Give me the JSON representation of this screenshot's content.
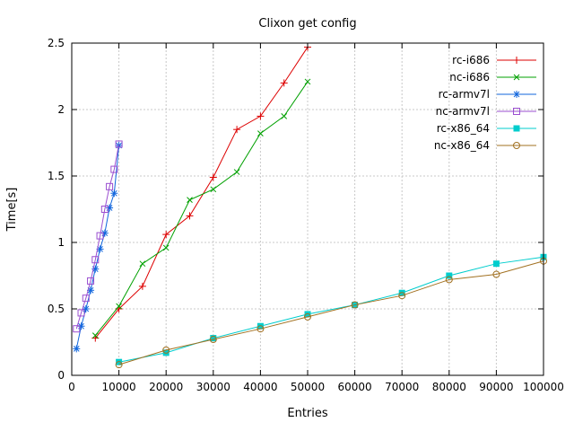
{
  "chart_data": {
    "type": "line",
    "title": "Clixon get config",
    "xlabel": "Entries",
    "ylabel": "Time[s]",
    "xlim": [
      0,
      100000
    ],
    "ylim": [
      0,
      2.5
    ],
    "xticks": [
      0,
      10000,
      20000,
      30000,
      40000,
      50000,
      60000,
      70000,
      80000,
      90000,
      100000
    ],
    "yticks": [
      0,
      0.5,
      1,
      1.5,
      2,
      2.5
    ],
    "grid": true,
    "legend_position": "inside-top-right",
    "series": [
      {
        "name": "rc-i686",
        "color": "#dd0000",
        "marker": "plus",
        "x": [
          5000,
          10000,
          15000,
          20000,
          25000,
          30000,
          35000,
          40000,
          45000,
          50000
        ],
        "y": [
          0.28,
          0.5,
          0.67,
          1.06,
          1.2,
          1.49,
          1.85,
          1.95,
          2.2,
          2.47
        ]
      },
      {
        "name": "nc-i686",
        "color": "#00a000",
        "marker": "cross",
        "x": [
          5000,
          10000,
          15000,
          20000,
          25000,
          30000,
          35000,
          40000,
          45000,
          50000
        ],
        "y": [
          0.3,
          0.52,
          0.84,
          0.96,
          1.32,
          1.4,
          1.53,
          1.82,
          1.95,
          2.21
        ]
      },
      {
        "name": "rc-armv7l",
        "color": "#1166dd",
        "marker": "asterisk",
        "x": [
          1000,
          2000,
          3000,
          4000,
          5000,
          6000,
          7000,
          8000,
          9000,
          10000
        ],
        "y": [
          0.2,
          0.37,
          0.5,
          0.64,
          0.8,
          0.95,
          1.07,
          1.26,
          1.37,
          1.73
        ]
      },
      {
        "name": "nc-armv7l",
        "color": "#9b4fd0",
        "marker": "square-open",
        "x": [
          1000,
          2000,
          3000,
          4000,
          5000,
          6000,
          7000,
          8000,
          9000,
          10000
        ],
        "y": [
          0.35,
          0.47,
          0.58,
          0.71,
          0.87,
          1.05,
          1.25,
          1.42,
          1.55,
          1.74
        ]
      },
      {
        "name": "rc-x86_64",
        "color": "#00cdcd",
        "marker": "square-filled",
        "x": [
          10000,
          20000,
          30000,
          40000,
          50000,
          60000,
          70000,
          80000,
          90000,
          100000
        ],
        "y": [
          0.1,
          0.17,
          0.28,
          0.37,
          0.46,
          0.53,
          0.62,
          0.75,
          0.84,
          0.89
        ]
      },
      {
        "name": "nc-x86_64",
        "color": "#a27121",
        "marker": "circle-open",
        "x": [
          10000,
          20000,
          30000,
          40000,
          50000,
          60000,
          70000,
          80000,
          90000,
          100000
        ],
        "y": [
          0.08,
          0.19,
          0.27,
          0.35,
          0.44,
          0.53,
          0.6,
          0.72,
          0.76,
          0.86
        ]
      }
    ]
  }
}
